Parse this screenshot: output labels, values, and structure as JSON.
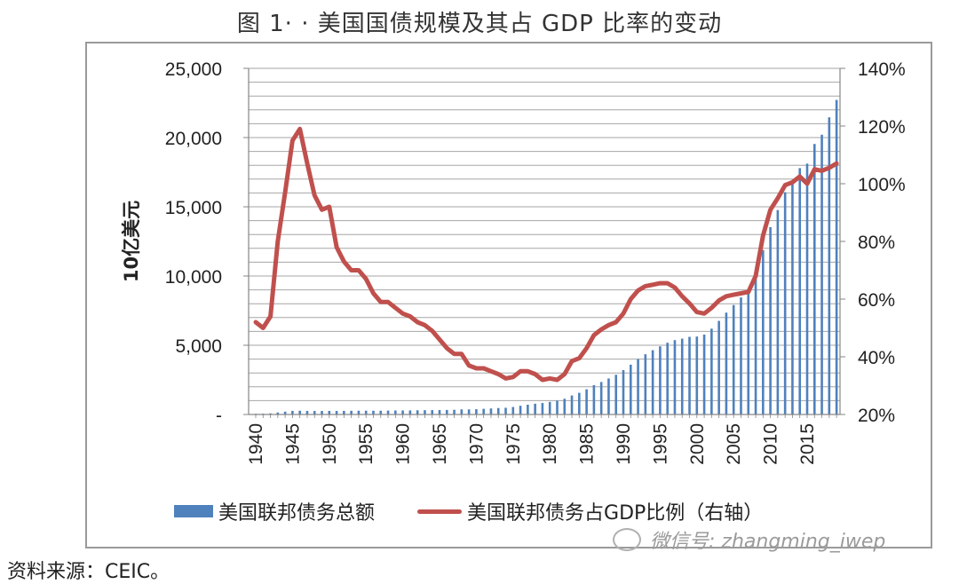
{
  "figure": {
    "title": "图 1· · 美国国债规模及其占 GDP 比率的变动",
    "source": "资料来源：CEIC。",
    "watermark": "微信号: zhangming_iwep"
  },
  "chart_data": {
    "type": "bar+line",
    "title": "图 1 美国国债规模及其占 GDP 比率的变动",
    "xlabel": "",
    "ylabel": "10亿美元",
    "y2label": "",
    "ylim": [
      0,
      25000
    ],
    "y2lim": [
      0.2,
      1.4
    ],
    "grid": true,
    "legend_position": "bottom",
    "yticks": [
      "-",
      "5,000",
      "10,000",
      "15,000",
      "20,000",
      "25,000"
    ],
    "y2ticks": [
      "20%",
      "40%",
      "60%",
      "80%",
      "100%",
      "120%",
      "140%"
    ],
    "xticks": [
      "1940",
      "1945",
      "1950",
      "1955",
      "1960",
      "1965",
      "1970",
      "1975",
      "1980",
      "1985",
      "1990",
      "1995",
      "2000",
      "2005",
      "2010",
      "2015"
    ],
    "x": [
      1940,
      1941,
      1942,
      1943,
      1944,
      1945,
      1946,
      1947,
      1948,
      1949,
      1950,
      1951,
      1952,
      1953,
      1954,
      1955,
      1956,
      1957,
      1958,
      1959,
      1960,
      1961,
      1962,
      1963,
      1964,
      1965,
      1966,
      1967,
      1968,
      1969,
      1970,
      1971,
      1972,
      1973,
      1974,
      1975,
      1976,
      1977,
      1978,
      1979,
      1980,
      1981,
      1982,
      1983,
      1984,
      1985,
      1986,
      1987,
      1988,
      1989,
      1990,
      1991,
      1992,
      1993,
      1994,
      1995,
      1996,
      1997,
      1998,
      1999,
      2000,
      2001,
      2002,
      2003,
      2004,
      2005,
      2006,
      2007,
      2008,
      2009,
      2010,
      2011,
      2012,
      2013,
      2014,
      2015,
      2016,
      2017,
      2018,
      2019
    ],
    "series": [
      {
        "name": "美国联邦债务总额",
        "type": "bar",
        "axis": "left",
        "color": "#4f81bd",
        "values": [
          51,
          58,
          79,
          143,
          204,
          260,
          271,
          257,
          252,
          253,
          257,
          255,
          259,
          266,
          271,
          274,
          272,
          272,
          280,
          287,
          291,
          293,
          303,
          310,
          316,
          322,
          328,
          340,
          368,
          366,
          381,
          408,
          436,
          466,
          484,
          542,
          629,
          706,
          777,
          829,
          909,
          995,
          1137,
          1372,
          1565,
          1817,
          2121,
          2346,
          2601,
          2868,
          3206,
          3598,
          4002,
          4351,
          4643,
          4921,
          5181,
          5369,
          5478,
          5606,
          5629,
          5770,
          6198,
          6760,
          7355,
          7905,
          8451,
          8951,
          9986,
          11876,
          13529,
          14764,
          16051,
          16719,
          17794,
          18120,
          19539,
          20206,
          21462,
          22719
        ]
      },
      {
        "name": "美国联邦债务占GDP比例（右轴）",
        "type": "line",
        "axis": "right",
        "color": "#c0504d",
        "values": [
          0.52,
          0.5,
          0.54,
          0.8,
          0.97,
          1.15,
          1.19,
          1.07,
          0.96,
          0.91,
          0.92,
          0.78,
          0.73,
          0.7,
          0.7,
          0.67,
          0.62,
          0.59,
          0.59,
          0.57,
          0.55,
          0.54,
          0.52,
          0.51,
          0.49,
          0.46,
          0.43,
          0.41,
          0.41,
          0.37,
          0.36,
          0.36,
          0.35,
          0.34,
          0.325,
          0.33,
          0.35,
          0.35,
          0.34,
          0.32,
          0.325,
          0.32,
          0.34,
          0.385,
          0.395,
          0.43,
          0.475,
          0.495,
          0.51,
          0.52,
          0.55,
          0.6,
          0.63,
          0.645,
          0.65,
          0.655,
          0.655,
          0.64,
          0.61,
          0.585,
          0.555,
          0.55,
          0.57,
          0.595,
          0.61,
          0.615,
          0.62,
          0.625,
          0.68,
          0.82,
          0.91,
          0.95,
          0.995,
          1.005,
          1.025,
          1.0,
          1.05,
          1.045,
          1.055,
          1.07
        ]
      }
    ]
  },
  "legend": {
    "bar_label": "美国联邦债务总额",
    "line_label": "美国联邦债务占GDP比例（右轴）"
  }
}
